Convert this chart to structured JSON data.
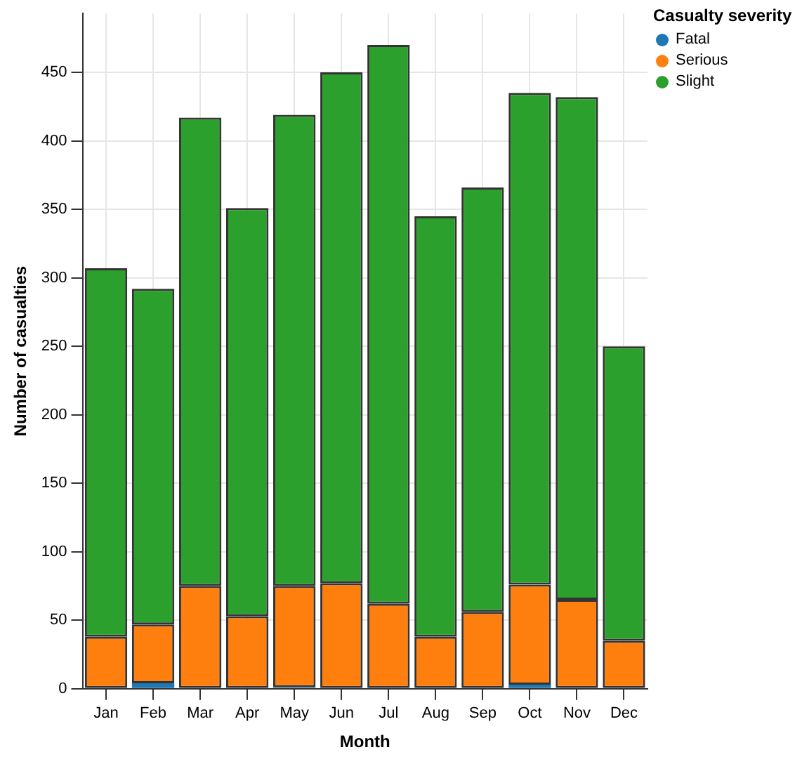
{
  "chart_data": {
    "type": "bar",
    "stacked": true,
    "xlabel": "Month",
    "ylabel": "Number of casualties",
    "legend_title": "Casualty severity",
    "categories": [
      "Jan",
      "Feb",
      "Mar",
      "Apr",
      "May",
      "Jun",
      "Jul",
      "Aug",
      "Sep",
      "Oct",
      "Nov",
      "Dec"
    ],
    "series": [
      {
        "name": "Fatal",
        "color": "#1f77b4",
        "values": [
          0,
          4,
          0,
          0,
          1,
          0,
          0,
          0,
          0,
          3,
          0,
          0
        ]
      },
      {
        "name": "Serious",
        "color": "#ff7f0e",
        "values": [
          38,
          43,
          75,
          53,
          74,
          77,
          62,
          38,
          56,
          73,
          65,
          35
        ]
      },
      {
        "name": "Slight",
        "color": "#2ca02c",
        "values": [
          269,
          245,
          342,
          298,
          344,
          373,
          408,
          307,
          310,
          359,
          367,
          215
        ]
      }
    ],
    "ylim": [
      0,
      493
    ],
    "yticks": [
      0,
      50,
      100,
      150,
      200,
      250,
      300,
      350,
      400,
      450
    ],
    "grid": true,
    "legend": "top right"
  }
}
